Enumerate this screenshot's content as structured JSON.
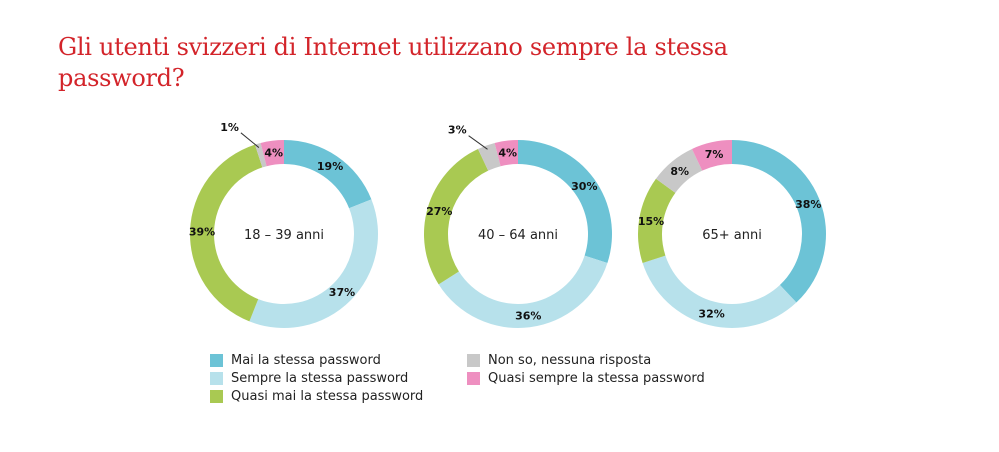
{
  "chart_data": {
    "type": "donut",
    "title": "Gli utenti svizzeri di Internet utilizzano sempre la stessa password?",
    "series_names": [
      "Mai la stessa password",
      "Sempre la stessa password",
      "Quasi mai la stessa password",
      "Non so, nessuna risposta",
      "Quasi sempre la stessa password"
    ],
    "colors": [
      "#6cc3d6",
      "#b7e1eb",
      "#a9c952",
      "#c8c8c8",
      "#ee8fc0"
    ],
    "charts": [
      {
        "label": "18 – 39 anni",
        "values": [
          19,
          37,
          39,
          1,
          4
        ]
      },
      {
        "label": "40 – 64 anni",
        "values": [
          30,
          36,
          27,
          3,
          4
        ]
      },
      {
        "label": "65+ anni",
        "values": [
          38,
          32,
          15,
          8,
          7
        ]
      }
    ],
    "unit": "%",
    "legend_position": "bottom"
  }
}
